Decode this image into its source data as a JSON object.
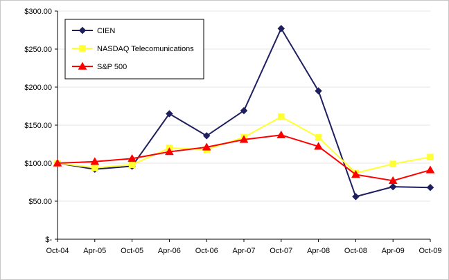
{
  "chart_data": {
    "type": "line",
    "title": "",
    "xlabel": "",
    "ylabel": "",
    "categories": [
      "Oct-04",
      "Apr-05",
      "Oct-05",
      "Apr-06",
      "Oct-06",
      "Apr-07",
      "Oct-07",
      "Apr-08",
      "Oct-08",
      "Apr-09",
      "Oct-09"
    ],
    "y_ticks": [
      "$-",
      "$50.00",
      "$100.00",
      "$150.00",
      "$200.00",
      "$250.00",
      "$300.00"
    ],
    "ylim": [
      0,
      300
    ],
    "grid": true,
    "legend_position": "top-left",
    "series": [
      {
        "name": "CIEN",
        "color": "#1f1f5f",
        "marker": "diamond",
        "values": [
          100,
          92,
          96,
          165,
          136,
          169,
          277,
          195,
          56,
          69,
          68
        ]
      },
      {
        "name": "NASDAQ Telecomunications",
        "color": "#ffff33",
        "marker": "square",
        "values": [
          100,
          94,
          98,
          120,
          118,
          134,
          161,
          134,
          87,
          99,
          108
        ]
      },
      {
        "name": "S&P 500",
        "color": "#ff0000",
        "marker": "triangle",
        "values": [
          100,
          102,
          106,
          115,
          121,
          131,
          137,
          122,
          85,
          77,
          91
        ]
      }
    ]
  }
}
